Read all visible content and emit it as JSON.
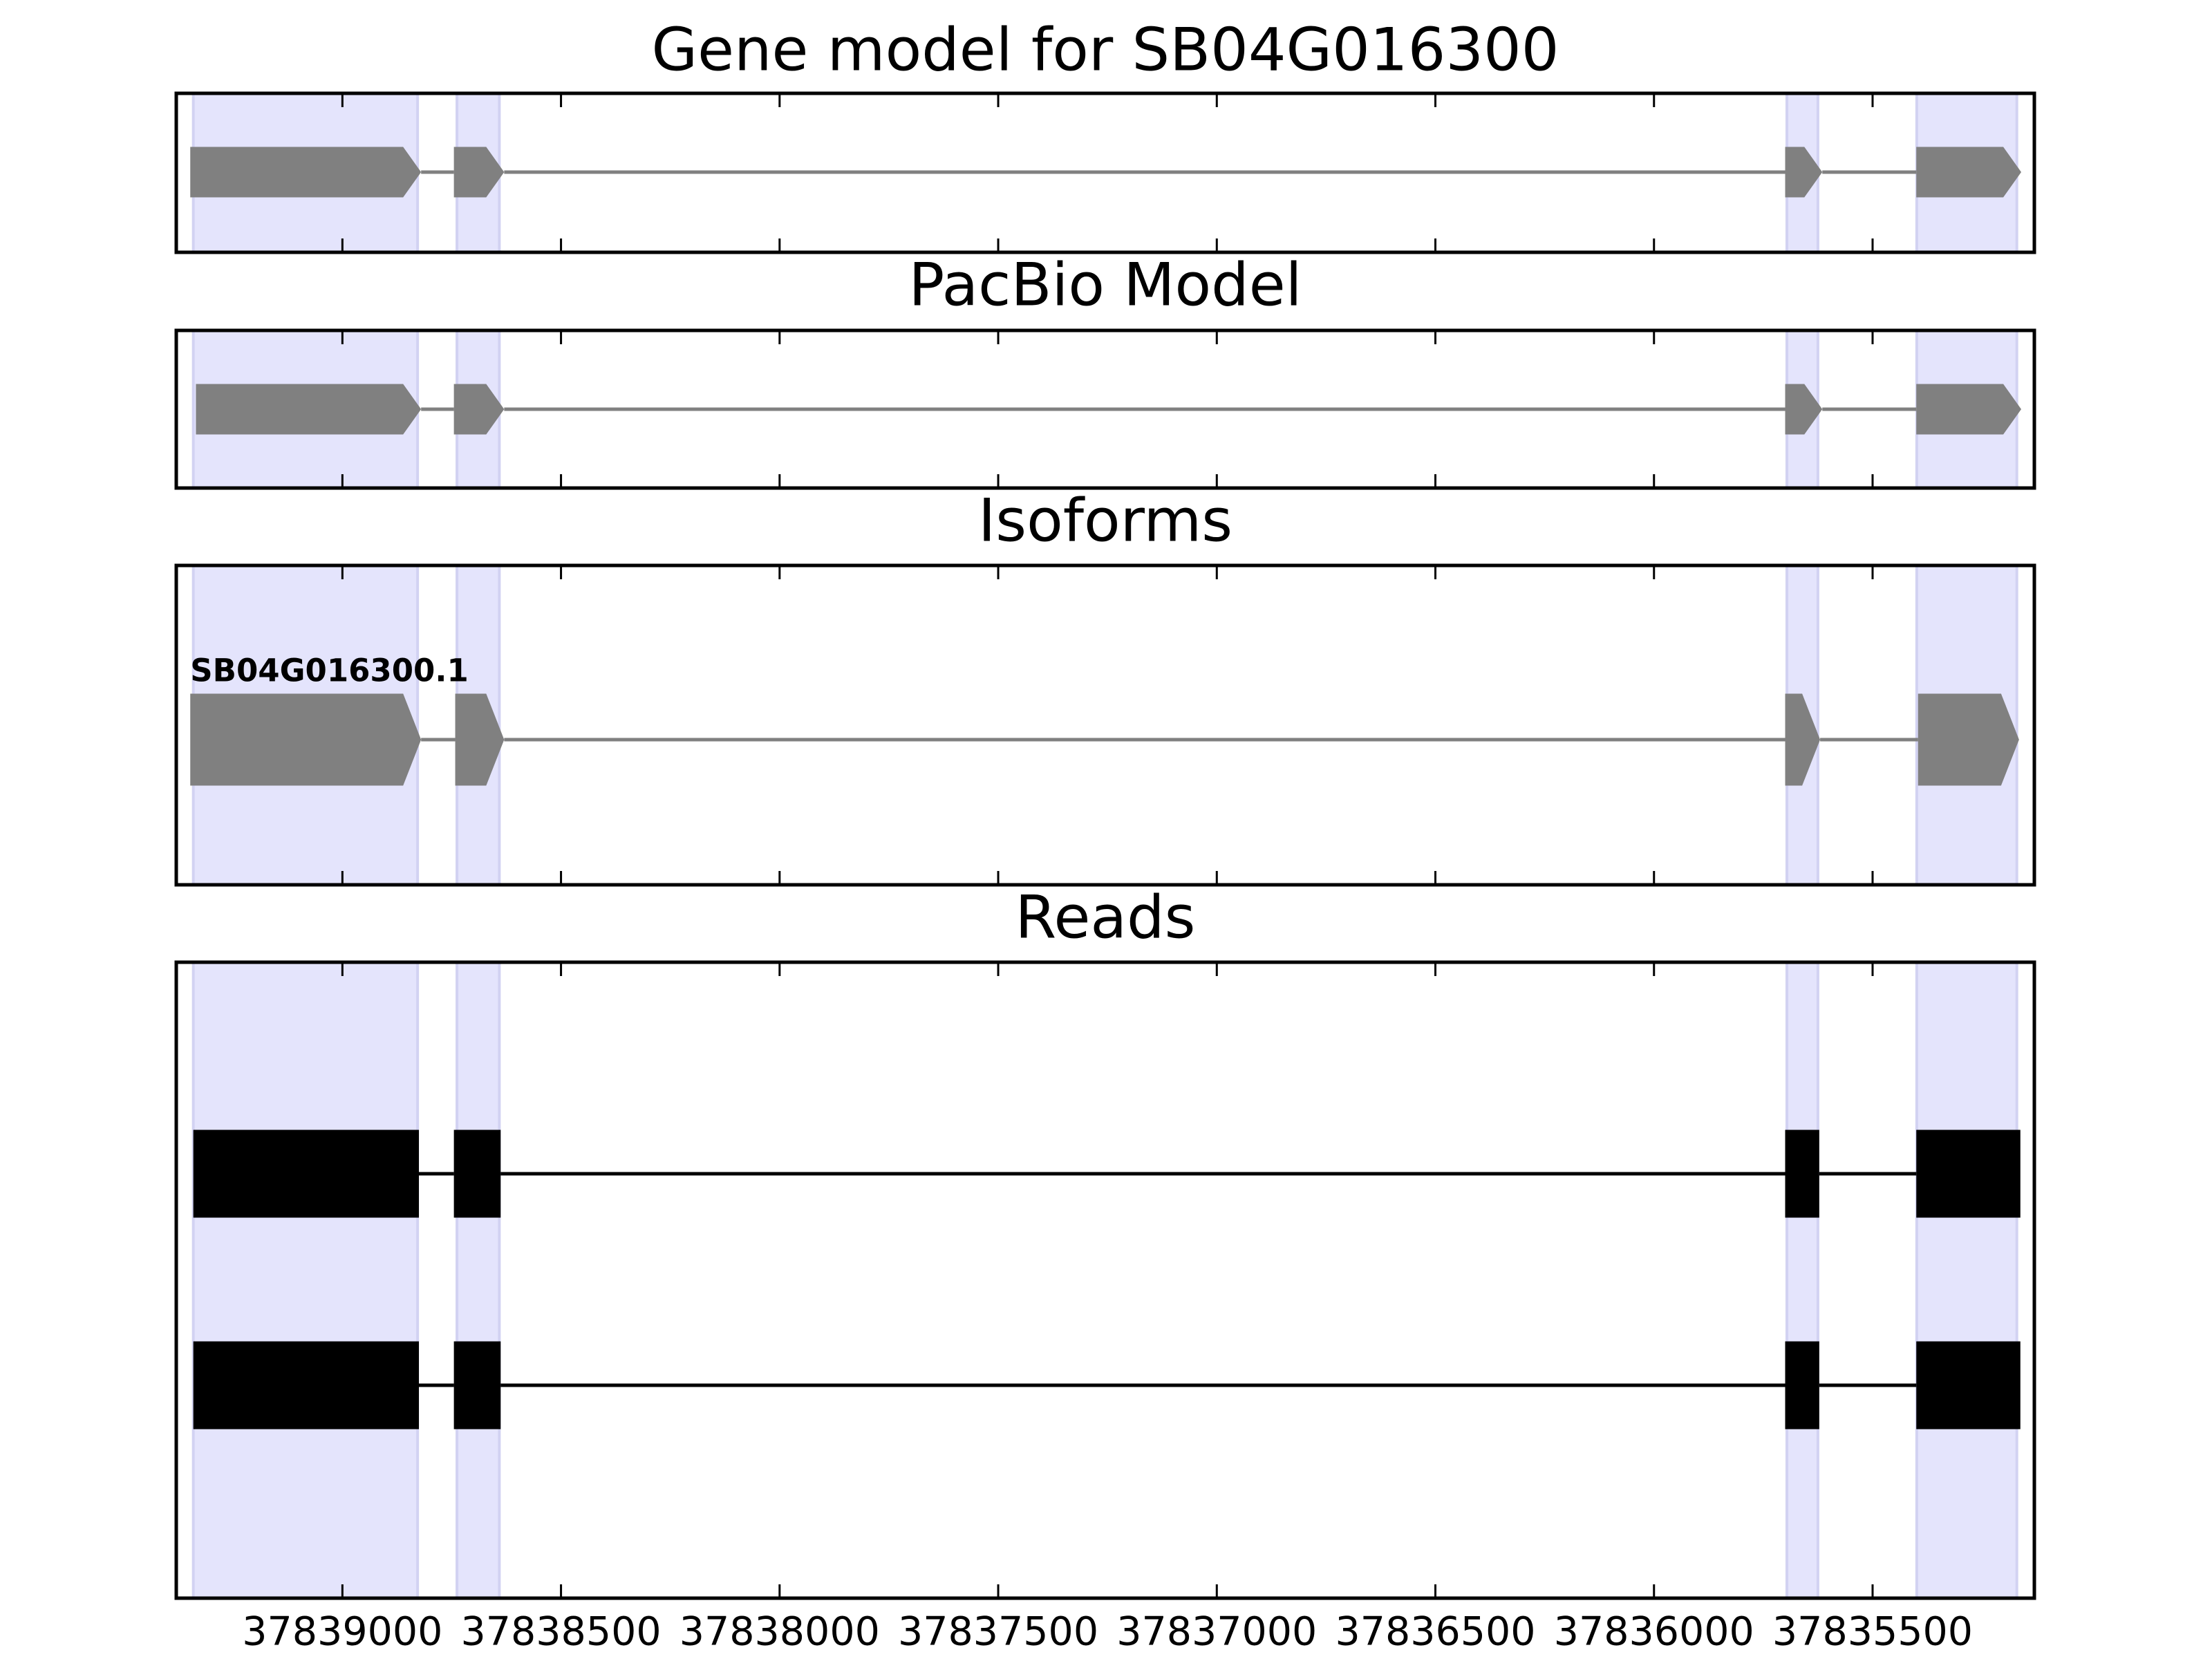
{
  "chart_data": [
    {
      "type": "gene_model",
      "title": "Gene model for SB04G016300",
      "xlim": [
        37839380,
        37835130
      ],
      "xticks": [
        37839000,
        37838500,
        37838000,
        37837500,
        37837000,
        37836500,
        37836000,
        37835500
      ],
      "highlight_color": "#e4e4fc",
      "highlights": [
        [
          37839341,
          37838828
        ],
        [
          37838738,
          37838641
        ],
        [
          37835696,
          37835625
        ],
        [
          37835399,
          37835170
        ]
      ],
      "color": "#808080",
      "transcripts": [
        {
          "exons": [
            [
              37839348,
              37838820
            ],
            [
              37838745,
              37838630
            ],
            [
              37835700,
              37835615
            ],
            [
              37835400,
              37835160
            ]
          ]
        }
      ]
    },
    {
      "type": "gene_model",
      "title": "PacBio Model",
      "xlim": [
        37839380,
        37835130
      ],
      "xticks": [
        37839000,
        37838500,
        37838000,
        37837500,
        37837000,
        37836500,
        37836000,
        37835500
      ],
      "highlight_color": "#e4e4fc",
      "highlights": [
        [
          37839341,
          37838828
        ],
        [
          37838738,
          37838641
        ],
        [
          37835696,
          37835625
        ],
        [
          37835399,
          37835170
        ]
      ],
      "color": "#808080",
      "transcripts": [
        {
          "exons": [
            [
              37839335,
              37838820
            ],
            [
              37838745,
              37838630
            ],
            [
              37835700,
              37835615
            ],
            [
              37835400,
              37835160
            ]
          ]
        }
      ]
    },
    {
      "type": "gene_model",
      "title": "Isoforms",
      "xlim": [
        37839380,
        37835130
      ],
      "xticks": [
        37839000,
        37838500,
        37838000,
        37837500,
        37837000,
        37836500,
        37836000,
        37835500
      ],
      "highlight_color": "#e4e4fc",
      "highlights": [
        [
          37839341,
          37838828
        ],
        [
          37838738,
          37838641
        ],
        [
          37835696,
          37835625
        ],
        [
          37835399,
          37835170
        ]
      ],
      "color": "#808080",
      "transcripts": [
        {
          "name": "SB04G016300.1",
          "exons": [
            [
              37839348,
              37838820
            ],
            [
              37838742,
              37838630
            ],
            [
              37835700,
              37835620
            ],
            [
              37835396,
              37835165
            ]
          ]
        }
      ]
    },
    {
      "type": "reads",
      "title": "Reads",
      "xlim": [
        37839380,
        37835130
      ],
      "xticks": [
        37839000,
        37838500,
        37838000,
        37837500,
        37837000,
        37836500,
        37836000,
        37835500
      ],
      "highlight_color": "#e4e4fc",
      "highlights": [
        [
          37839341,
          37838828
        ],
        [
          37838738,
          37838641
        ],
        [
          37835696,
          37835625
        ],
        [
          37835399,
          37835170
        ]
      ],
      "color": "#000000",
      "reads": [
        {
          "exons": [
            [
              37839341,
              37838825
            ],
            [
              37838745,
              37838638
            ],
            [
              37835700,
              37835622
            ],
            [
              37835400,
              37835162
            ]
          ]
        },
        {
          "exons": [
            [
              37839341,
              37838825
            ],
            [
              37838745,
              37838638
            ],
            [
              37835700,
              37835622
            ],
            [
              37835400,
              37835162
            ]
          ]
        }
      ]
    }
  ]
}
